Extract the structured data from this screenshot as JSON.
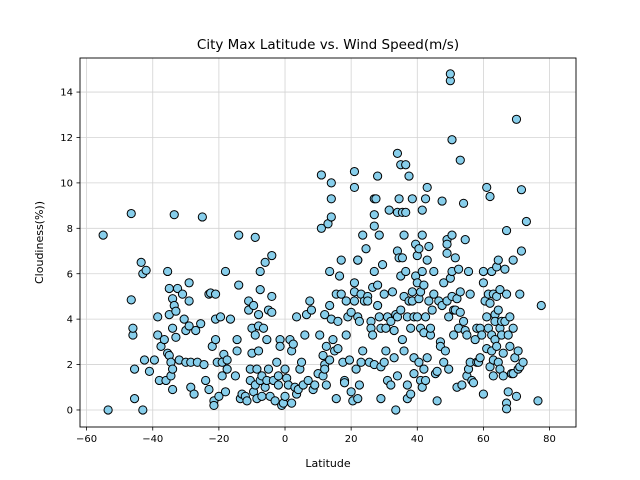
{
  "chart_data": {
    "type": "scatter",
    "title": "City Max Latitude vs. Wind Speed(m/s)",
    "xlabel": "Latitude",
    "ylabel": "Cloudiness(%))",
    "xlim": [
      -62,
      88
    ],
    "ylim": [
      -0.75,
      15.5
    ],
    "xticks": [
      -60,
      -40,
      -20,
      0,
      20,
      40,
      60,
      80
    ],
    "yticks": [
      0,
      2,
      4,
      6,
      8,
      10,
      12,
      14
    ],
    "grid": true,
    "marker_color": "#87ceeb",
    "marker_edge_color": "#000000",
    "points": [
      [
        -55,
        7.7
      ],
      [
        -53.5,
        0
      ],
      [
        -46.5,
        8.65
      ],
      [
        -46.5,
        4.85
      ],
      [
        -46,
        3.3
      ],
      [
        -46,
        3.6
      ],
      [
        -45.5,
        1.8
      ],
      [
        -45.5,
        0.5
      ],
      [
        -43.5,
        6.5
      ],
      [
        -43,
        6
      ],
      [
        -43,
        0
      ],
      [
        -42.5,
        2.2
      ],
      [
        -42,
        6.15
      ],
      [
        -41,
        1.7
      ],
      [
        -39.5,
        2.2
      ],
      [
        -38.5,
        3.3
      ],
      [
        -38.5,
        4.1
      ],
      [
        -38,
        1.3
      ],
      [
        -37.5,
        2.8
      ],
      [
        -36.5,
        3.1
      ],
      [
        -36,
        1.3
      ],
      [
        -35.5,
        6.1
      ],
      [
        -35.5,
        2.5
      ],
      [
        -35,
        5.35
      ],
      [
        -35,
        4.2
      ],
      [
        -35,
        2.4
      ],
      [
        -34.5,
        2.1
      ],
      [
        -34.5,
        1.5
      ],
      [
        -34,
        4.9
      ],
      [
        -34,
        3.6
      ],
      [
        -34,
        1.8
      ],
      [
        -34,
        0.9
      ],
      [
        -33.5,
        8.6
      ],
      [
        -33.5,
        4.6
      ],
      [
        -33,
        4.35
      ],
      [
        -33,
        3.2
      ],
      [
        -32.5,
        5.35
      ],
      [
        -32,
        2.2
      ],
      [
        -31,
        5.1
      ],
      [
        -30.5,
        4
      ],
      [
        -30,
        3.5
      ],
      [
        -30,
        2.1
      ],
      [
        -29,
        5.6
      ],
      [
        -29,
        4.8
      ],
      [
        -29,
        3.7
      ],
      [
        -28.5,
        2.1
      ],
      [
        -28.5,
        1
      ],
      [
        -27.5,
        0.7
      ],
      [
        -27,
        3.5
      ],
      [
        -26.5,
        2.1
      ],
      [
        -25.5,
        3.8
      ],
      [
        -25,
        8.5
      ],
      [
        -24.5,
        2
      ],
      [
        -24,
        1.3
      ],
      [
        -23,
        5.1
      ],
      [
        -23,
        0.9
      ],
      [
        -22.5,
        5.15
      ],
      [
        -22,
        2.8
      ],
      [
        -21.5,
        0.4
      ],
      [
        -21.5,
        0.2
      ],
      [
        -21,
        5.1
      ],
      [
        -21,
        4
      ],
      [
        -21,
        3.1
      ],
      [
        -20.5,
        2.1
      ],
      [
        -20,
        0.6
      ],
      [
        -19.5,
        4.1
      ],
      [
        -19,
        1.5
      ],
      [
        -19,
        2.1
      ],
      [
        -18.5,
        2.45
      ],
      [
        -18,
        6.1
      ],
      [
        -18,
        0.8
      ],
      [
        -17.5,
        1.8
      ],
      [
        -17.5,
        2.2
      ],
      [
        -16.5,
        4
      ],
      [
        -15,
        1.5
      ],
      [
        -14.5,
        2.6
      ],
      [
        -14.5,
        3.1
      ],
      [
        -14,
        7.7
      ],
      [
        -14,
        5.5
      ],
      [
        -13.5,
        0.5
      ],
      [
        -13,
        0.7
      ],
      [
        -12,
        0.6
      ],
      [
        -11.5,
        0.4
      ],
      [
        -11,
        4.8
      ],
      [
        -11,
        4.4
      ],
      [
        -10.5,
        1.8
      ],
      [
        -10.5,
        1.3
      ],
      [
        -10,
        3.6
      ],
      [
        -10,
        2.5
      ],
      [
        -9.5,
        4.6
      ],
      [
        -9.5,
        0.8
      ],
      [
        -9,
        7.6
      ],
      [
        -9,
        3.3
      ],
      [
        -9,
        1.1
      ],
      [
        -8.5,
        0.5
      ],
      [
        -8.5,
        1.8
      ],
      [
        -8,
        2.6
      ],
      [
        -8,
        4.2
      ],
      [
        -8,
        3.7
      ],
      [
        -7.5,
        6.1
      ],
      [
        -7.5,
        5.3
      ],
      [
        -7.5,
        1.3
      ],
      [
        -7,
        1.5
      ],
      [
        -7,
        0.6
      ],
      [
        -6.5,
        3.6
      ],
      [
        -6,
        6.5
      ],
      [
        -6,
        1
      ],
      [
        -5.5,
        3.1
      ],
      [
        -5.5,
        1.3
      ],
      [
        -5,
        1.8
      ],
      [
        -5,
        4.4
      ],
      [
        -4.5,
        0.6
      ],
      [
        -4,
        6.8
      ],
      [
        -4,
        5
      ],
      [
        -4,
        4.3
      ],
      [
        -3.5,
        1.3
      ],
      [
        -3,
        0.4
      ],
      [
        -2.5,
        2.1
      ],
      [
        -2,
        1.5
      ],
      [
        -2,
        1.1
      ],
      [
        -1.5,
        3.1
      ],
      [
        -1.5,
        2.8
      ],
      [
        -1,
        0.2
      ],
      [
        -0.5,
        0.3
      ],
      [
        0,
        1.8
      ],
      [
        0,
        0.6
      ],
      [
        0.5,
        1.4
      ],
      [
        1,
        1.1
      ],
      [
        1.5,
        3.1
      ],
      [
        2,
        0.3
      ],
      [
        2,
        2.6
      ],
      [
        2.5,
        2.9
      ],
      [
        3,
        1
      ],
      [
        3.5,
        4.1
      ],
      [
        3.5,
        0.7
      ],
      [
        4,
        0.9
      ],
      [
        4.5,
        1.8
      ],
      [
        5,
        2.1
      ],
      [
        5.5,
        1.1
      ],
      [
        6,
        3.3
      ],
      [
        6.5,
        4.2
      ],
      [
        7,
        1.3
      ],
      [
        7.5,
        4.8
      ],
      [
        8,
        4.4
      ],
      [
        8.5,
        0.9
      ],
      [
        9,
        1.1
      ],
      [
        10,
        1.6
      ],
      [
        10.5,
        3.3
      ],
      [
        11,
        10.35
      ],
      [
        11,
        8
      ],
      [
        11.5,
        2.4
      ],
      [
        11.5,
        1.5
      ],
      [
        12,
        4.2
      ],
      [
        12,
        2
      ],
      [
        12,
        1.8
      ],
      [
        12.5,
        2.8
      ],
      [
        12.5,
        1.1
      ],
      [
        13,
        8.2
      ],
      [
        13.5,
        6.1
      ],
      [
        13.5,
        4.6
      ],
      [
        13.5,
        2.2
      ],
      [
        14,
        10
      ],
      [
        14,
        9.3
      ],
      [
        14,
        8.5
      ],
      [
        14,
        4
      ],
      [
        14.5,
        3.1
      ],
      [
        15,
        2.6
      ],
      [
        15.5,
        5.1
      ],
      [
        15.5,
        0.5
      ],
      [
        16,
        3.9
      ],
      [
        16,
        2.7
      ],
      [
        16.5,
        5.9
      ],
      [
        17,
        5.1
      ],
      [
        17,
        6.6
      ],
      [
        17.5,
        2.1
      ],
      [
        18,
        1.3
      ],
      [
        18,
        1.2
      ],
      [
        18.5,
        4.8
      ],
      [
        18.5,
        3.3
      ],
      [
        19,
        4.1
      ],
      [
        19.5,
        2.2
      ],
      [
        20,
        0.8
      ],
      [
        20,
        4.3
      ],
      [
        20.5,
        0.4
      ],
      [
        21,
        10.5
      ],
      [
        21,
        9.8
      ],
      [
        21,
        5.6
      ],
      [
        21,
        5.2
      ],
      [
        21,
        4.8
      ],
      [
        21.5,
        1.8
      ],
      [
        22,
        6.6
      ],
      [
        22,
        6.6
      ],
      [
        22,
        4.1
      ],
      [
        22,
        0.5
      ],
      [
        22.5,
        3.9
      ],
      [
        22.5,
        1.1
      ],
      [
        23,
        5.1
      ],
      [
        23,
        2.1
      ],
      [
        23.5,
        7.7
      ],
      [
        23.5,
        2.6
      ],
      [
        24,
        4.8
      ],
      [
        24.5,
        7.1
      ],
      [
        25,
        5
      ],
      [
        25,
        4.8
      ],
      [
        25.5,
        2.1
      ],
      [
        26,
        3.9
      ],
      [
        26,
        3.6
      ],
      [
        26.5,
        5.4
      ],
      [
        26.5,
        3.3
      ],
      [
        27,
        9.3
      ],
      [
        27,
        8.6
      ],
      [
        27,
        8.1
      ],
      [
        27,
        6.1
      ],
      [
        27,
        2
      ],
      [
        27.5,
        9.3
      ],
      [
        28,
        10.3
      ],
      [
        28,
        5.5
      ],
      [
        28,
        4.6
      ],
      [
        28.5,
        7.7
      ],
      [
        28.5,
        4.1
      ],
      [
        29,
        3.6
      ],
      [
        29,
        0.5
      ],
      [
        29,
        1.9
      ],
      [
        29.5,
        6.4
      ],
      [
        30,
        5.1
      ],
      [
        30,
        2.1
      ],
      [
        30.5,
        3.6
      ],
      [
        30.5,
        2.6
      ],
      [
        31,
        4.1
      ],
      [
        31,
        1.3
      ],
      [
        31.5,
        8.8
      ],
      [
        32,
        1.1
      ],
      [
        32,
        3.9
      ],
      [
        32.5,
        5.2
      ],
      [
        33,
        3.5
      ],
      [
        33,
        2.3
      ],
      [
        33.5,
        0
      ],
      [
        33.5,
        4.2
      ],
      [
        34,
        11.3
      ],
      [
        34,
        8.7
      ],
      [
        34,
        7
      ],
      [
        34,
        4.1
      ],
      [
        34,
        1.5
      ],
      [
        34.5,
        9.3
      ],
      [
        34.5,
        6.7
      ],
      [
        35,
        10.8
      ],
      [
        35,
        5.9
      ],
      [
        35,
        4.4
      ],
      [
        35.5,
        3.1
      ],
      [
        35.5,
        8.7
      ],
      [
        35.5,
        6.7
      ],
      [
        36,
        7.7
      ],
      [
        36,
        5
      ],
      [
        36,
        2.6
      ],
      [
        36.5,
        8.7
      ],
      [
        36.5,
        10.8
      ],
      [
        36.5,
        6.1
      ],
      [
        37,
        4.1
      ],
      [
        37,
        1.1
      ],
      [
        37,
        0.5
      ],
      [
        37.5,
        10.3
      ],
      [
        37.5,
        4.8
      ],
      [
        38,
        3.6
      ],
      [
        38,
        0.7
      ],
      [
        38.5,
        9.3
      ],
      [
        38.5,
        5.2
      ],
      [
        38.5,
        4.8
      ],
      [
        39,
        4.1
      ],
      [
        39,
        2.3
      ],
      [
        39,
        1.6
      ],
      [
        39.5,
        7.3
      ],
      [
        39.5,
        5.9
      ],
      [
        40,
        6.8
      ],
      [
        40,
        5.6
      ],
      [
        40,
        4.1
      ],
      [
        40.5,
        7.1
      ],
      [
        40.5,
        4.9
      ],
      [
        40.5,
        2.1
      ],
      [
        41,
        5.2
      ],
      [
        41,
        3.6
      ],
      [
        41,
        1.3
      ],
      [
        41.5,
        8.8
      ],
      [
        41.5,
        7.7
      ],
      [
        41.5,
        6.1
      ],
      [
        41.5,
        1
      ],
      [
        42,
        5.5
      ],
      [
        42,
        3.4
      ],
      [
        42,
        1.8
      ],
      [
        42.5,
        9.3
      ],
      [
        42.5,
        4.1
      ],
      [
        42.5,
        1.3
      ],
      [
        43,
        9.8
      ],
      [
        43,
        6.6
      ],
      [
        43,
        2.3
      ],
      [
        43.5,
        7.2
      ],
      [
        43.5,
        4.8
      ],
      [
        44,
        3.3
      ],
      [
        44,
        3.6
      ],
      [
        44.5,
        4.4
      ],
      [
        45,
        6.1
      ],
      [
        45,
        5.1
      ],
      [
        45.5,
        1.6
      ],
      [
        46,
        0.4
      ],
      [
        46,
        1.7
      ],
      [
        46.5,
        4.8
      ],
      [
        47,
        3
      ],
      [
        47,
        2.8
      ],
      [
        47.5,
        9.2
      ],
      [
        47.5,
        4.6
      ],
      [
        48,
        5.6
      ],
      [
        48,
        2.1
      ],
      [
        48.5,
        2.6
      ],
      [
        49,
        7.5
      ],
      [
        49,
        7.3
      ],
      [
        49,
        6.9
      ],
      [
        49,
        4.8
      ],
      [
        49.5,
        4.1
      ],
      [
        49.5,
        1.8
      ],
      [
        50,
        14.5
      ],
      [
        50,
        14.8
      ],
      [
        50,
        5.8
      ],
      [
        50.5,
        11.9
      ],
      [
        50.5,
        7.7
      ],
      [
        50.5,
        6.1
      ],
      [
        50.5,
        5
      ],
      [
        51,
        4.4
      ],
      [
        51,
        3.3
      ],
      [
        51.5,
        6.7
      ],
      [
        51.5,
        4.4
      ],
      [
        52,
        4.9
      ],
      [
        52,
        1
      ],
      [
        52.5,
        3.6
      ],
      [
        52.5,
        6.2
      ],
      [
        53,
        11
      ],
      [
        53,
        5.2
      ],
      [
        53,
        4.3
      ],
      [
        53.5,
        1.1
      ],
      [
        54,
        9.1
      ],
      [
        54,
        3.9
      ],
      [
        54.5,
        7.5
      ],
      [
        54.5,
        3.5
      ],
      [
        55,
        3.3
      ],
      [
        55,
        1.5
      ],
      [
        55.5,
        6.1
      ],
      [
        55.5,
        1.8
      ],
      [
        56,
        5.1
      ],
      [
        56,
        2.1
      ],
      [
        56.5,
        1.3
      ],
      [
        57,
        1.2
      ],
      [
        57.5,
        3.1
      ],
      [
        58,
        3.6
      ],
      [
        58,
        2.1
      ],
      [
        58.5,
        2.1
      ],
      [
        59,
        3.6
      ],
      [
        59,
        2.3
      ],
      [
        59.5,
        3.3
      ],
      [
        60,
        6.1
      ],
      [
        60,
        5.6
      ],
      [
        60,
        0.7
      ],
      [
        60.5,
        4.8
      ],
      [
        61,
        9.8
      ],
      [
        61,
        4.1
      ],
      [
        61,
        2.7
      ],
      [
        61.5,
        5.1
      ],
      [
        61.5,
        3.6
      ],
      [
        62,
        9.4
      ],
      [
        62,
        4.7
      ],
      [
        62,
        1.9
      ],
      [
        62.5,
        6.1
      ],
      [
        62.5,
        3.3
      ],
      [
        62.5,
        2.6
      ],
      [
        63,
        5.1
      ],
      [
        63,
        2.2
      ],
      [
        63,
        1.5
      ],
      [
        63.5,
        4.2
      ],
      [
        63.5,
        3.9
      ],
      [
        63.5,
        3.1
      ],
      [
        64,
        6.3
      ],
      [
        64,
        5
      ],
      [
        64,
        2.8
      ],
      [
        64.5,
        6.6
      ],
      [
        64.5,
        4.4
      ],
      [
        64.5,
        2.1
      ],
      [
        65,
        5.3
      ],
      [
        65,
        3.6
      ],
      [
        65,
        1.8
      ],
      [
        65.5,
        3.9
      ],
      [
        65.5,
        3.3
      ],
      [
        66,
        2.5
      ],
      [
        66,
        1.5
      ],
      [
        66.5,
        6.2
      ],
      [
        66.5,
        3.9
      ],
      [
        67,
        7.9
      ],
      [
        67,
        5.1
      ],
      [
        67,
        0.3
      ],
      [
        67,
        0.05
      ],
      [
        67.5,
        3.3
      ],
      [
        67.5,
        0.8
      ],
      [
        68,
        4.1
      ],
      [
        68,
        2.8
      ],
      [
        68.5,
        1.6
      ],
      [
        69,
        3.6
      ],
      [
        69,
        6.6
      ],
      [
        69,
        1.6
      ],
      [
        69.5,
        2.3
      ],
      [
        70,
        12.8
      ],
      [
        70,
        0.6
      ],
      [
        70.5,
        1.8
      ],
      [
        70.5,
        2.6
      ],
      [
        71,
        5.1
      ],
      [
        71,
        1.9
      ],
      [
        71.5,
        9.7
      ],
      [
        71.5,
        7
      ],
      [
        72,
        2.1
      ],
      [
        73,
        8.3
      ],
      [
        76.5,
        0.4
      ],
      [
        77.5,
        4.6
      ]
    ]
  }
}
